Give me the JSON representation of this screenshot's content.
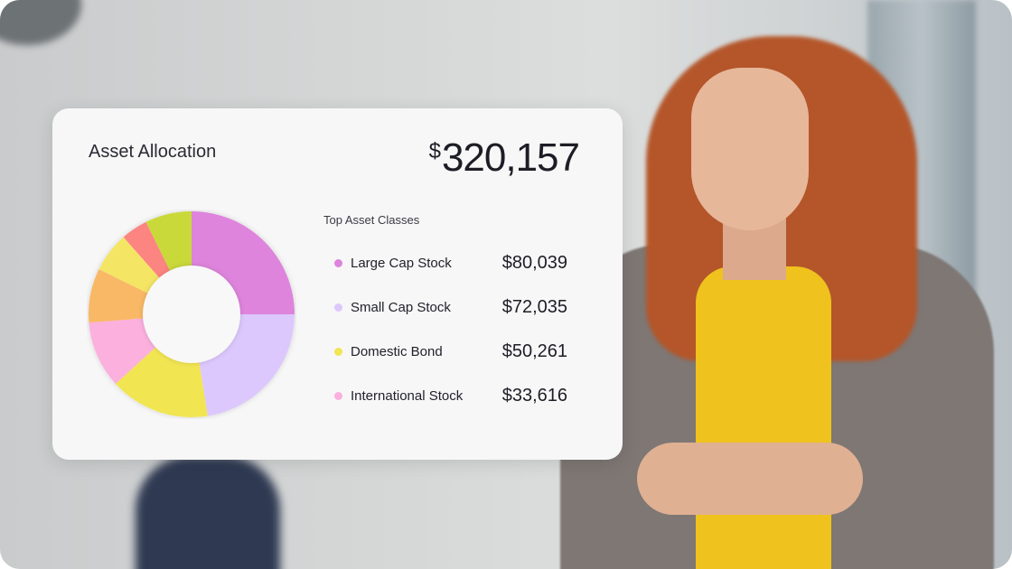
{
  "card": {
    "title": "Asset Allocation",
    "total_currency": "$",
    "total_value": "320,157",
    "legend_heading": "Top Asset Classes"
  },
  "chart_data": {
    "type": "pie",
    "donut": true,
    "title": "Asset Allocation",
    "unit": "percent of total (estimated from slice sizes)",
    "slices": [
      {
        "name": "Large Cap Stock",
        "amount": "$80,039",
        "value": 25.0,
        "color": "#de84dc"
      },
      {
        "name": "Small Cap Stock",
        "amount": "$72,035",
        "value": 22.5,
        "color": "#dcc8fc"
      },
      {
        "name": "Domestic Bond",
        "amount": "$50,261",
        "value": 15.7,
        "color": "#f1e552"
      },
      {
        "name": "International Stock",
        "amount": "$33,616",
        "value": 10.5,
        "color": "#fbb0de"
      },
      {
        "value": 8.5,
        "color": "#f9b866"
      },
      {
        "value": 6.3,
        "color": "#f4e565"
      },
      {
        "value": 4.2,
        "color": "#fc8481"
      },
      {
        "value": 7.3,
        "color": "#c9d93a"
      }
    ]
  }
}
